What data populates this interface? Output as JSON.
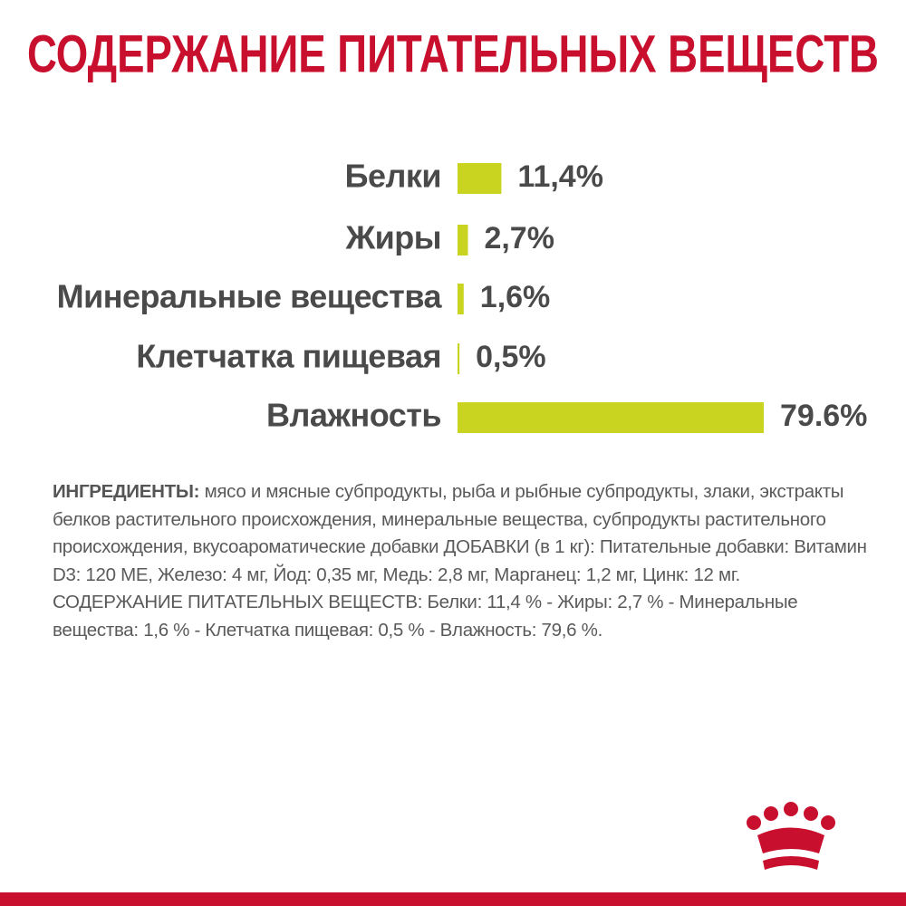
{
  "chart_data": {
    "type": "bar",
    "orientation": "horizontal",
    "title": "СОДЕРЖАНИЕ ПИТАТЕЛЬНЫХ ВЕЩЕСТВ",
    "categories": [
      "Белки",
      "Жиры",
      "Минеральные вещества",
      "Клетчатка пищевая",
      "Влажность"
    ],
    "values": [
      11.4,
      2.7,
      1.6,
      0.5,
      79.6
    ],
    "value_labels": [
      "11,4%",
      "2,7%",
      "1,6%",
      "0,5%",
      "79.6%"
    ],
    "color": "#c8d41f"
  },
  "ingredients": {
    "label": "ИНГРЕДИЕНТЫ:",
    "text": "мясо и мясные субпродукты, рыба и рыбные субпродукты, злаки, экстракты белков растительного происхождения, минеральные вещества, субпродукты растительного происхождения, вкусоароматические добавки ДОБАВКИ (в 1 кг): Питательные добавки: Витамин D3: 120 МЕ, Железо: 4 мг, Йод: 0,35 мг, Медь: 2,8 мг, Марганец: 1,2 мг, Цинк: 12 мг. СОДЕРЖАНИЕ ПИТАТЕЛЬНЫХ ВЕЩЕСТВ: Белки: 11,4 % - Жиры: 2,7 % - Минеральные вещества: 1,6 % - Клетчатка пищевая: 0,5 % - Влажность: 79,6 %."
  }
}
